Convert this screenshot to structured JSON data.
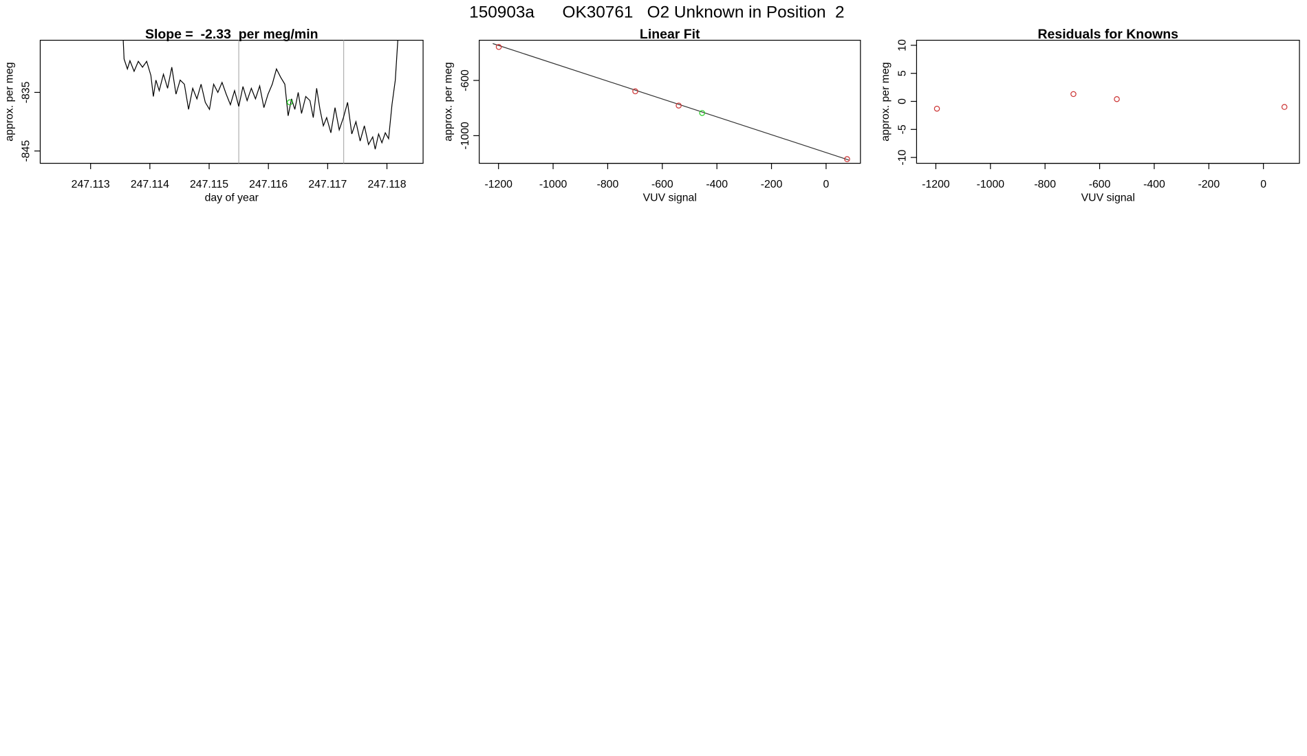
{
  "title": "150903a      OK30761   O2 Unknown in Position  2",
  "chart_data": [
    {
      "type": "line",
      "title": "Slope =  -2.33  per meg/min",
      "xlabel": "day of year",
      "ylabel": "approx. per meg",
      "x": [
        247.113523,
        247.113565,
        247.113621,
        247.113664,
        247.113734,
        247.113805,
        247.113876,
        247.113946,
        247.114017,
        247.114059,
        247.114102,
        247.114158,
        247.114229,
        247.114299,
        247.11437,
        247.114441,
        247.114511,
        247.114582,
        247.114653,
        247.114723,
        247.114794,
        247.114864,
        247.114935,
        247.115006,
        247.115076,
        247.115147,
        247.115218,
        247.115288,
        247.115359,
        247.115429,
        247.1155,
        247.115571,
        247.115641,
        247.115712,
        247.115782,
        247.115853,
        247.115924,
        247.115994,
        247.116065,
        247.116136,
        247.116206,
        247.116277,
        247.116333,
        247.11639,
        247.116446,
        247.116503,
        247.116559,
        247.11663,
        247.116701,
        247.116757,
        247.116814,
        247.11687,
        247.116927,
        247.116983,
        247.117054,
        247.117124,
        247.117195,
        247.117266,
        247.117336,
        247.117407,
        247.117477,
        247.117548,
        247.117619,
        247.117689,
        247.11776,
        247.117802,
        247.117859,
        247.117915,
        247.117972,
        247.118028,
        247.118085,
        247.118141,
        247.118184,
        247.118212
      ],
      "values": [
        -820,
        -829.3,
        -831,
        -829.6,
        -831.4,
        -829.7,
        -830.7,
        -829.7,
        -832.1,
        -835.7,
        -832.9,
        -834.7,
        -831.9,
        -834.3,
        -830.7,
        -835.3,
        -832.9,
        -833.6,
        -837.9,
        -834.3,
        -836.1,
        -833.6,
        -836.7,
        -837.9,
        -833.6,
        -835,
        -833.3,
        -835.3,
        -837.1,
        -834.7,
        -837.4,
        -834,
        -836.4,
        -834.3,
        -836.1,
        -833.9,
        -837.6,
        -835.3,
        -833.6,
        -831,
        -832.4,
        -833.6,
        -839,
        -836.1,
        -837.9,
        -835,
        -838.6,
        -835.7,
        -836.4,
        -839.3,
        -834.3,
        -837.9,
        -840.7,
        -839.3,
        -841.9,
        -837.6,
        -841.4,
        -839.3,
        -836.7,
        -842.1,
        -840,
        -843.3,
        -840.7,
        -843.9,
        -842.6,
        -844.7,
        -842.1,
        -843.6,
        -841.9,
        -842.9,
        -837.1,
        -832.9,
        -826,
        -823.4
      ],
      "color": "#000000",
      "vlines": [
        247.1155,
        247.11727
      ],
      "vline_color": "#b0b0b0",
      "points": {
        "x": [
          247.11636
        ],
        "values": [
          -836.7
        ],
        "color": "#22cc22"
      },
      "xlim": [
        247.11215,
        247.11861
      ],
      "ylim": [
        -847.1,
        -826.1
      ],
      "xticks": [
        247.113,
        247.114,
        247.115,
        247.116,
        247.117,
        247.118
      ],
      "yticks": [
        -845,
        -835
      ]
    },
    {
      "type": "scatter",
      "title": "Linear Fit",
      "xlabel": "VUV signal",
      "ylabel": "approx. per meg",
      "x": [
        -1199,
        -699,
        -540,
        77
      ],
      "values": [
        -358,
        -679,
        -782,
        -1170
      ],
      "color": "#cc3333",
      "points": {
        "x": [
          -454
        ],
        "values": [
          -836
        ],
        "color": "#22cc22"
      },
      "fit": {
        "x": [
          -1221,
          83
        ],
        "values": [
          -333,
          -1176
        ],
        "color": "#333333"
      },
      "xlim": [
        -1270.6,
        125.8
      ],
      "ylim": [
        -1200,
        -309
      ],
      "xticks": [
        -1200,
        -1000,
        -800,
        -600,
        -400,
        -200,
        0
      ],
      "yticks": [
        -1000,
        -600
      ]
    },
    {
      "type": "scatter",
      "title": "Residuals for Knowns",
      "xlabel": "VUV signal",
      "ylabel": "approx. per meg",
      "x": [
        -1196,
        -696,
        -537,
        77
      ],
      "values": [
        -1.3,
        1.3,
        0.4,
        -1.0
      ],
      "color": "#cc3333",
      "xlim": [
        -1270.6,
        132
      ],
      "ylim": [
        -11.04,
        10.9
      ],
      "xticks": [
        -1200,
        -1000,
        -800,
        -600,
        -400,
        -200,
        0
      ],
      "yticks": [
        -10,
        -5,
        0,
        5,
        10
      ]
    }
  ]
}
